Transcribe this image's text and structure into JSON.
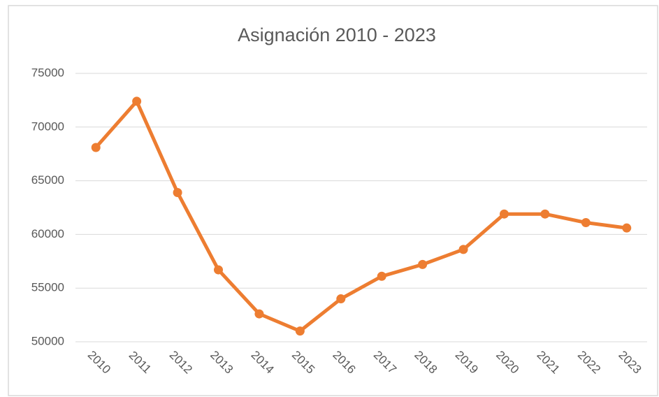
{
  "chart_data": {
    "type": "line",
    "title": "Asignación 2010 - 2023",
    "categories": [
      "2010",
      "2011",
      "2012",
      "2013",
      "2014",
      "2015",
      "2016",
      "2017",
      "2018",
      "2019",
      "2020",
      "2021",
      "2022",
      "2023"
    ],
    "series": [
      {
        "name": "Asignación",
        "color": "#ed7d31",
        "values": [
          68100,
          72400,
          63900,
          56700,
          52600,
          51000,
          54000,
          56100,
          57200,
          58600,
          61900,
          61900,
          61100,
          60600
        ]
      }
    ],
    "ylim": [
      50000,
      75000
    ],
    "yticks": [
      50000,
      55000,
      60000,
      65000,
      70000,
      75000
    ],
    "grid": true,
    "legend": false
  }
}
